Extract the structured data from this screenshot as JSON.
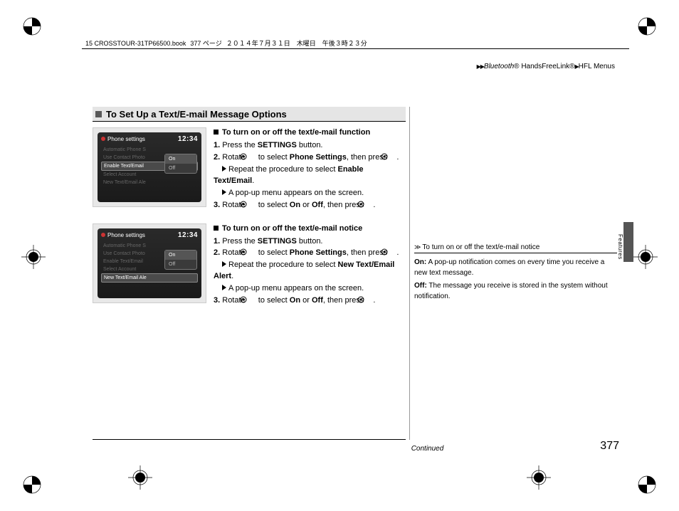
{
  "header": {
    "file": "15 CROSSTOUR-31TP66500.book",
    "page_jp": "377 ページ",
    "date_jp": "２０１４年７月３１日　木曜日　午後３時２３分"
  },
  "breadcrumb": {
    "a": "Bluetooth",
    "b": "HandsFreeLink",
    "c": "HFL Menus"
  },
  "section_title": "To Set Up a Text/E-mail Message Options",
  "screens": {
    "title": "Phone settings",
    "time": "12:34",
    "items1": [
      "Automatic Phone S",
      "Use Contact Photo",
      "Enable Text/Email",
      "Select Account",
      "New Text/Email Ale"
    ],
    "hl1": 2,
    "items2": [
      "Automatic Phone S",
      "Use Contact Photo",
      "Enable Text/Email",
      "Select Account",
      "New Text/Email Ale"
    ],
    "hl2": 4,
    "popup": [
      "On",
      "Off"
    ]
  },
  "block1": {
    "head": "To turn on or off the text/e-mail function",
    "s1a": "Press the ",
    "s1b": "SETTINGS",
    "s1c": " button.",
    "s2a": "Rotate ",
    "s2b": " to select ",
    "s2c": "Phone Settings",
    "s2d": ", then press ",
    "s2e": ".",
    "s2fa": "Repeat the procedure to select ",
    "s2fb": "Enable Text/Email",
    "s2fc": ".",
    "s2g": "A pop-up menu appears on the screen.",
    "s3a": "Rotate ",
    "s3b": " to select ",
    "s3c": "On",
    "s3d": " or ",
    "s3e": "Off",
    "s3f": ", then press ",
    "s3g": "."
  },
  "block2": {
    "head": "To turn on or off the text/e-mail notice",
    "s1a": "Press the ",
    "s1b": "SETTINGS",
    "s1c": " button.",
    "s2a": "Rotate ",
    "s2b": " to select ",
    "s2c": "Phone Settings",
    "s2d": ", then press ",
    "s2e": ".",
    "s2fa": "Repeat the procedure to select ",
    "s2fb": "New Text/Email Alert",
    "s2fc": ".",
    "s2g": "A pop-up menu appears on the screen.",
    "s3a": "Rotate ",
    "s3b": " to select ",
    "s3c": "On",
    "s3d": " or ",
    "s3e": "Off",
    "s3f": ", then press ",
    "s3g": "."
  },
  "sidenote": {
    "head": "To turn on or off the text/e-mail notice",
    "on_l": "On:",
    "on_t": " A pop-up notification comes on every time you receive a new text message.",
    "off_l": "Off:",
    "off_t": " The message you receive is stored in the system without notification."
  },
  "side_label": "Features",
  "continued": "Continued",
  "page_number": "377"
}
